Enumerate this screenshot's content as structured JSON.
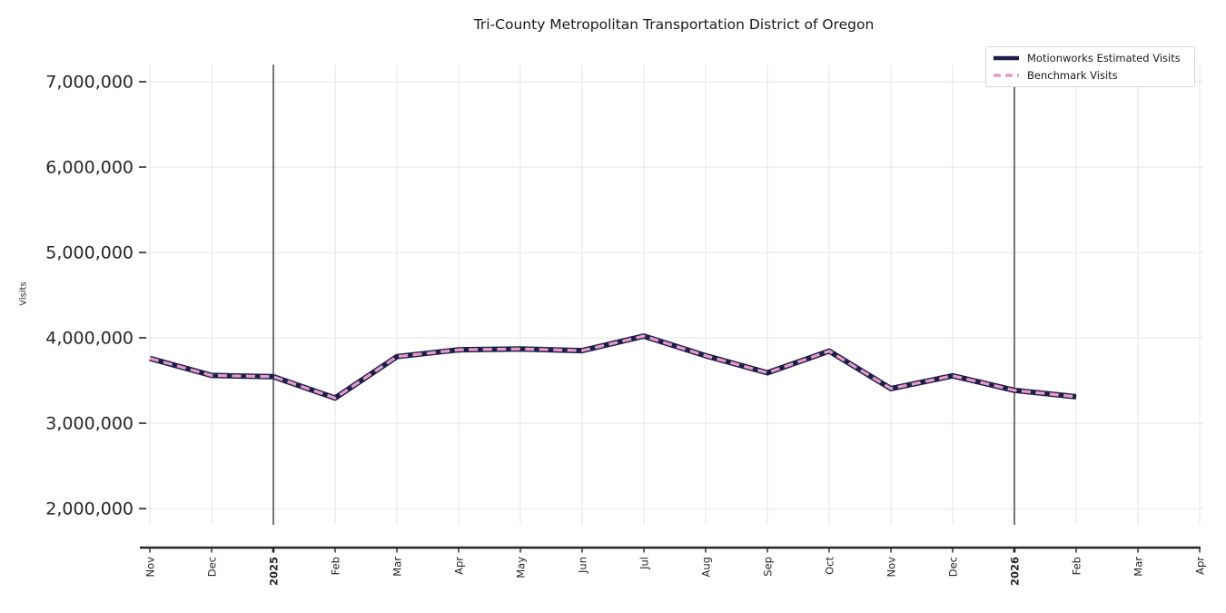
{
  "title": "Tri-County Metropolitan Transportation District of Oregon",
  "colors": {
    "estimated_line": "#1d1e4a",
    "benchmark_line": "#e79cc6",
    "gridline": "#e4e4e4",
    "axis": "#262626",
    "year_separator": "#3d3d3d",
    "tick_label": "#262626"
  },
  "chart_data": {
    "type": "line",
    "title": "Tri-County Metropolitan Transportation District of Oregon",
    "xlabel": "",
    "ylabel": "Visits",
    "x_tick_labels": [
      "Nov",
      "Dec",
      "2025",
      "Feb",
      "Mar",
      "Apr",
      "May",
      "Jun",
      "Jul",
      "Aug",
      "Sep",
      "Oct",
      "Nov",
      "Dec",
      "2026",
      "Feb",
      "Mar",
      "Apr"
    ],
    "bold_x_tick_indices": [
      2,
      14
    ],
    "year_separator_tick_indices": [
      2,
      14
    ],
    "yticks": [
      2000000,
      3000000,
      4000000,
      5000000,
      6000000,
      7000000
    ],
    "ytick_labels": [
      "2,000,000",
      "3,000,000",
      "4,000,000",
      "5,000,000",
      "6,000,000",
      "7,000,000"
    ],
    "ylim": [
      1800000,
      7200000
    ],
    "grid": true,
    "legend_position": "upper right",
    "series": [
      {
        "name": "Motionworks Estimated Visits",
        "color": "#1d1e4a",
        "line_style": "solid",
        "values": [
          3760000,
          3560000,
          3545000,
          3295000,
          3780000,
          3860000,
          3870000,
          3850000,
          4020000,
          3790000,
          3590000,
          3845000,
          3405000,
          3555000,
          3385000,
          3310000,
          null,
          null
        ]
      },
      {
        "name": "Benchmark Visits",
        "color": "#e79cc6",
        "line_style": "dashed",
        "values": [
          3760000,
          3560000,
          3545000,
          3295000,
          3780000,
          3860000,
          3870000,
          3850000,
          4020000,
          3790000,
          3590000,
          3845000,
          3405000,
          3555000,
          3385000,
          3310000,
          null,
          null
        ]
      }
    ]
  }
}
